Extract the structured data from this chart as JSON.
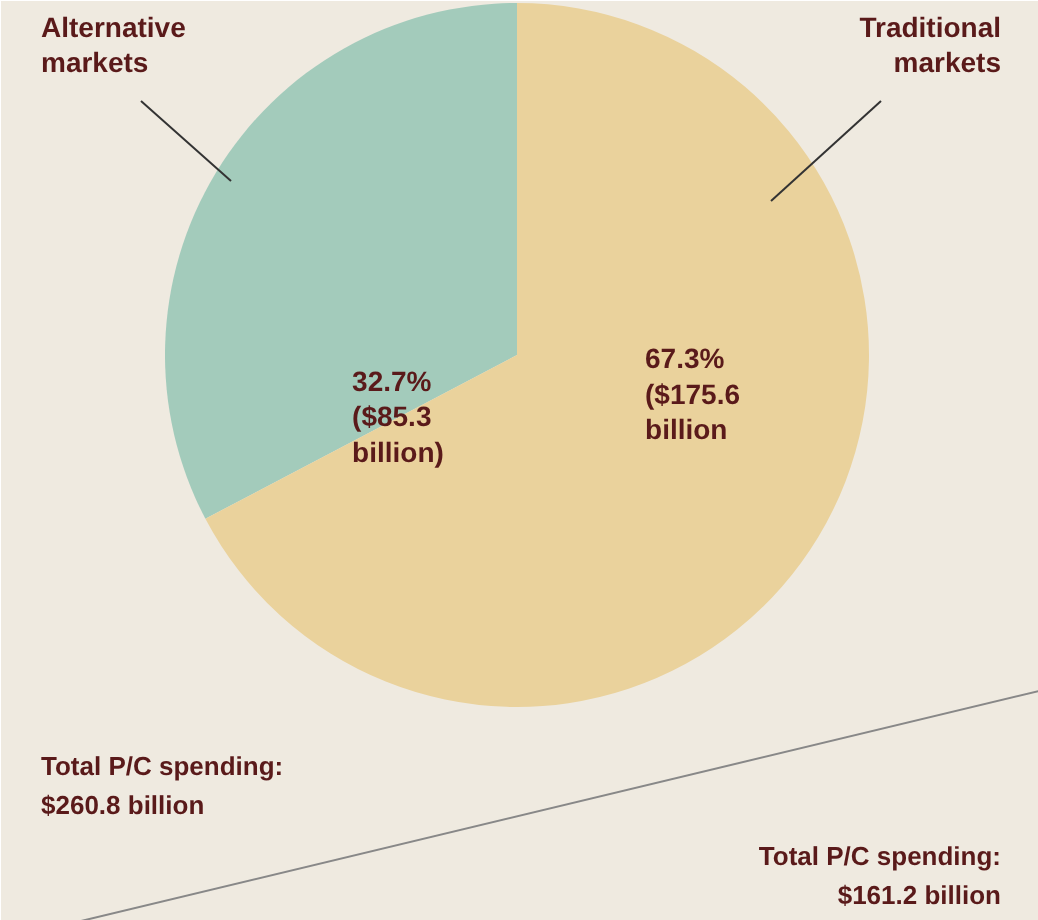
{
  "chart_data": {
    "type": "pie",
    "categories": [
      "Alternative markets",
      "Traditional markets"
    ],
    "values": [
      32.7,
      67.3
    ],
    "colors": [
      "#a3cbbb",
      "#ead29c"
    ],
    "value_labels": [
      "32.7%\n($85.3\nbillion)",
      "67.3%\n($175.6\nbillion"
    ],
    "annotations": [
      "Total P/C spending:\n$260.8 billion",
      "Total P/C spending:\n$161.2 billion"
    ]
  }
}
